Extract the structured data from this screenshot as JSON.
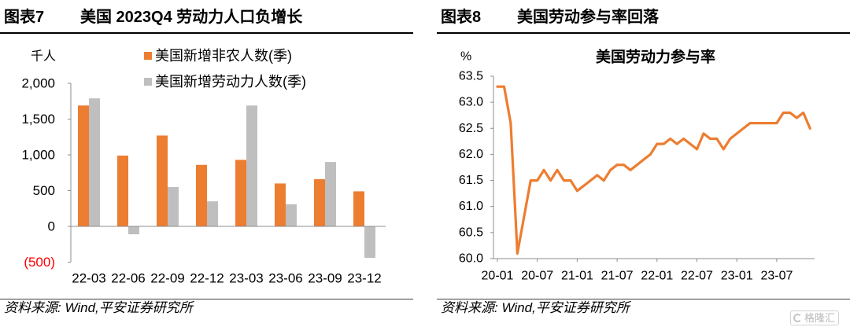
{
  "left_panel": {
    "figure_label": "图表7",
    "figure_title": "美国 2023Q4 劳动力人口负增长",
    "source": "资料来源: Wind,平安证券研究所"
  },
  "right_panel": {
    "figure_label": "图表8",
    "figure_title": "美国劳动参与率回落",
    "source": "资料来源: Wind,平安证券研究所",
    "watermark": "格隆汇"
  },
  "colors": {
    "nonfarm": "#ED7D31",
    "labor_force": "#BFBFBF",
    "participation_line": "#ED7D31",
    "negative_tick": "#FF0000",
    "axis": "#8C8C8C"
  },
  "chart_data": [
    {
      "type": "bar",
      "unit": "千人",
      "categories": [
        "22-03",
        "22-06",
        "22-09",
        "22-12",
        "23-03",
        "23-06",
        "23-09",
        "23-12"
      ],
      "series": [
        {
          "name": "美国新增非农人数(季)",
          "values": [
            1690,
            990,
            1270,
            860,
            930,
            600,
            660,
            490
          ]
        },
        {
          "name": "美国新增劳动力人数(季)",
          "values": [
            1790,
            -110,
            550,
            350,
            1690,
            310,
            900,
            -440
          ]
        }
      ],
      "ylim": [
        -500,
        2000
      ],
      "yticks": [
        2000,
        1500,
        1000,
        500,
        0,
        -500
      ],
      "ytick_labels": [
        "2,000",
        "1,500",
        "1,000",
        "500",
        "0",
        "(500)"
      ],
      "legend": "top-center",
      "grid": false
    },
    {
      "type": "line",
      "title": "美国劳动力参与率",
      "unit": "%",
      "x": [
        "2020-01",
        "2020-02",
        "2020-03",
        "2020-04",
        "2020-05",
        "2020-06",
        "2020-07",
        "2020-08",
        "2020-09",
        "2020-10",
        "2020-11",
        "2020-12",
        "2021-01",
        "2021-02",
        "2021-03",
        "2021-04",
        "2021-05",
        "2021-06",
        "2021-07",
        "2021-08",
        "2021-09",
        "2021-10",
        "2021-11",
        "2021-12",
        "2022-01",
        "2022-02",
        "2022-03",
        "2022-04",
        "2022-05",
        "2022-06",
        "2022-07",
        "2022-08",
        "2022-09",
        "2022-10",
        "2022-11",
        "2022-12",
        "2023-01",
        "2023-02",
        "2023-03",
        "2023-04",
        "2023-05",
        "2023-06",
        "2023-07",
        "2023-08",
        "2023-09",
        "2023-10",
        "2023-11",
        "2023-12"
      ],
      "series": [
        {
          "values": [
            63.3,
            63.3,
            62.6,
            60.1,
            60.8,
            61.5,
            61.5,
            61.7,
            61.5,
            61.7,
            61.5,
            61.5,
            61.3,
            61.4,
            61.5,
            61.6,
            61.5,
            61.7,
            61.8,
            61.8,
            61.7,
            61.8,
            61.9,
            62.0,
            62.2,
            62.2,
            62.3,
            62.2,
            62.3,
            62.2,
            62.1,
            62.4,
            62.3,
            62.3,
            62.1,
            62.3,
            62.4,
            62.5,
            62.6,
            62.6,
            62.6,
            62.6,
            62.6,
            62.8,
            62.8,
            62.7,
            62.8,
            62.5
          ]
        }
      ],
      "ylim": [
        60.0,
        63.5
      ],
      "yticks": [
        63.5,
        63.0,
        62.5,
        62.0,
        61.5,
        61.0,
        60.5,
        60.0
      ],
      "ytick_labels": [
        "63.5",
        "63.0",
        "62.5",
        "62.0",
        "61.5",
        "61.0",
        "60.5",
        "60.0"
      ],
      "xtick_labels": [
        "20-01",
        "20-07",
        "21-01",
        "21-07",
        "22-01",
        "22-07",
        "23-01",
        "23-07"
      ],
      "legend": "none",
      "grid": false
    }
  ]
}
